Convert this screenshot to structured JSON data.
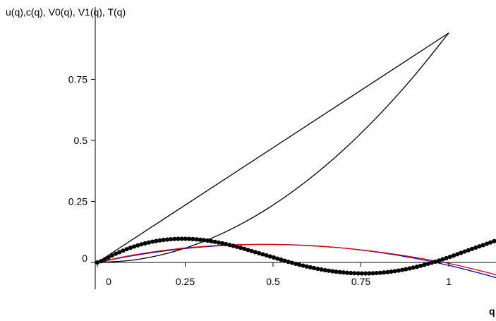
{
  "chart_data": {
    "type": "line",
    "ylabel": "u(q),c(q), V0(q), V1(q), T(q)",
    "xlabel": "q",
    "xlim": [
      -0.01,
      1.15
    ],
    "ylim": [
      -0.1,
      0.98
    ],
    "x_ticks": [
      {
        "value": 0,
        "label": "0"
      },
      {
        "value": 0.25,
        "label": "0.25"
      },
      {
        "value": 0.5,
        "label": "0.5"
      },
      {
        "value": 0.75,
        "label": "0.75"
      },
      {
        "value": 1,
        "label": "1"
      }
    ],
    "y_ticks": [
      {
        "value": 0,
        "label": "0"
      },
      {
        "value": 0.25,
        "label": "0.25"
      },
      {
        "value": 0.5,
        "label": "0.5"
      },
      {
        "value": 0.75,
        "label": "0.75"
      }
    ],
    "grid": false,
    "legend": "none",
    "series": [
      {
        "color": "#000000",
        "style": "solid",
        "x": [
          0,
          0.25,
          0.5,
          0.75,
          1.0
        ],
        "y": [
          0,
          0.235,
          0.47,
          0.705,
          0.94
        ]
      },
      {
        "color": "#000000",
        "style": "solid",
        "x": [
          0,
          0.1,
          0.2,
          0.3,
          0.4,
          0.5,
          0.6,
          0.7,
          0.8,
          0.9,
          1.0
        ],
        "y": [
          0,
          0.0094,
          0.0376,
          0.0846,
          0.1504,
          0.235,
          0.3384,
          0.4606,
          0.6016,
          0.7614,
          0.94
        ]
      },
      {
        "color": "#0000cc",
        "style": "solid",
        "x": [
          0,
          0.1,
          0.2,
          0.3,
          0.4,
          0.5,
          0.6,
          0.7,
          0.8,
          0.9,
          1.0,
          1.1,
          1.15
        ],
        "y": [
          0,
          0.0276,
          0.0488,
          0.0636,
          0.072,
          0.074,
          0.0696,
          0.0588,
          0.0416,
          0.018,
          -0.012,
          -0.0484,
          -0.0688
        ]
      },
      {
        "color": "#dd0000",
        "style": "solid",
        "x": [
          0,
          0.1,
          0.2,
          0.3,
          0.4,
          0.5,
          0.6,
          0.7,
          0.8,
          0.9,
          1.0,
          1.1,
          1.15
        ],
        "y": [
          0,
          0.0298,
          0.0514,
          0.0655,
          0.0728,
          0.0738,
          0.0692,
          0.0588,
          0.043,
          0.0218,
          -0.004,
          -0.0375,
          -0.057
        ]
      },
      {
        "color": "#000000",
        "style": "dotted-heavy",
        "x": [
          0,
          0.05,
          0.1,
          0.15,
          0.2,
          0.25,
          0.3,
          0.35,
          0.4,
          0.45,
          0.5,
          0.55,
          0.6,
          0.65,
          0.7,
          0.75,
          0.8,
          0.85,
          0.9,
          0.95,
          1.0,
          1.05,
          1.1,
          1.15
        ],
        "y": [
          0,
          0.034,
          0.063,
          0.083,
          0.094,
          0.097,
          0.092,
          0.08,
          0.063,
          0.042,
          0.021,
          0.0,
          -0.018,
          -0.032,
          -0.041,
          -0.045,
          -0.043,
          -0.035,
          -0.021,
          -0.002,
          0.021,
          0.047,
          0.072,
          0.095
        ]
      }
    ]
  }
}
